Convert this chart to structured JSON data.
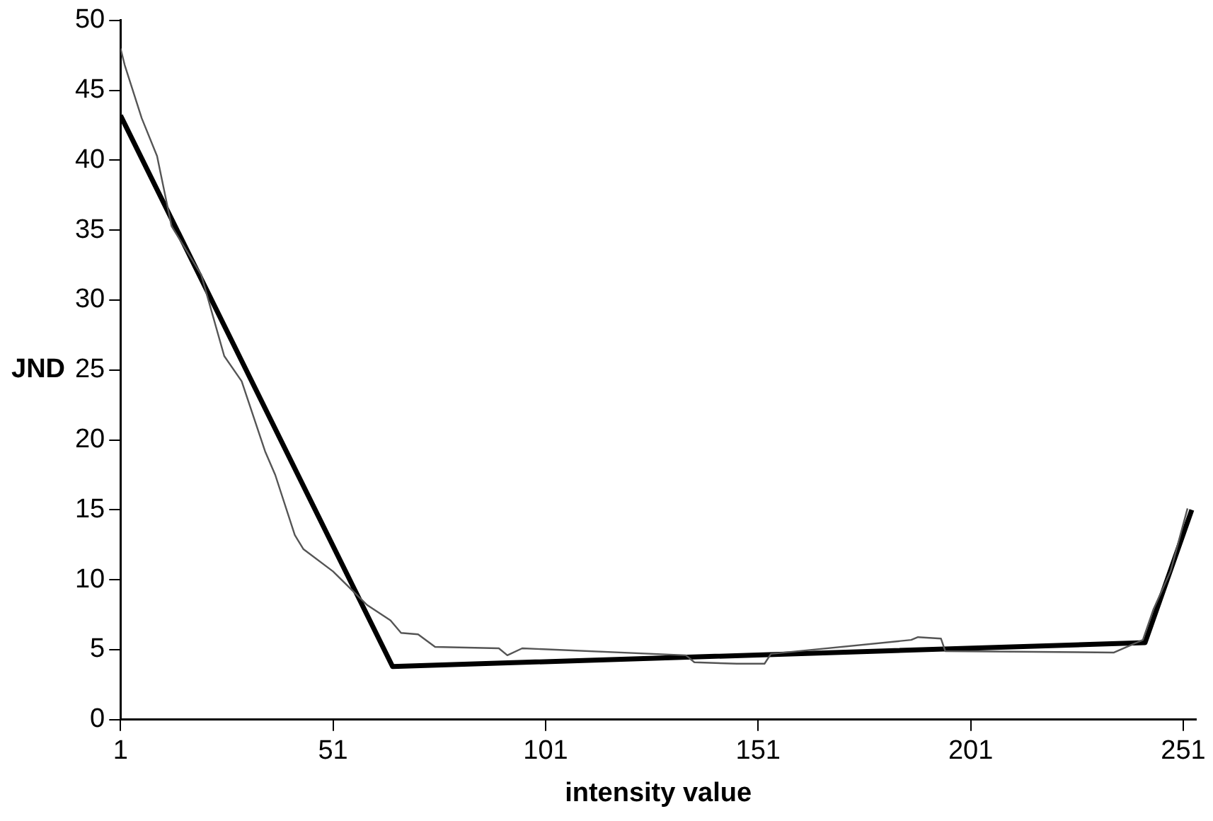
{
  "chart_data": {
    "type": "line",
    "xlabel": "intensity value",
    "ylabel": "JND",
    "xlim": [
      1,
      254
    ],
    "xticks": [
      1,
      51,
      101,
      151,
      201,
      251
    ],
    "ylim": [
      0,
      50
    ],
    "yticks": [
      0,
      5,
      10,
      15,
      20,
      25,
      30,
      35,
      40,
      45,
      50
    ],
    "grid": false,
    "legend": false,
    "marker": "none",
    "series": [
      {
        "color": "#555555",
        "x": [
          1,
          2,
          6,
          9.6,
          13,
          20,
          25.4,
          29.5,
          35,
          37.4,
          42,
          44,
          51,
          59,
          64.5,
          67,
          71,
          75,
          90,
          92,
          95.5,
          134,
          136,
          146,
          152.5,
          154,
          187,
          188.6,
          194,
          195,
          234.7,
          241.5,
          244,
          248,
          252
        ],
        "values": [
          48,
          46.8,
          43,
          40.3,
          35.3,
          31.8,
          26,
          24.2,
          19.2,
          17.5,
          13.2,
          12.2,
          10.6,
          8.2,
          7.1,
          6.2,
          6.1,
          5.2,
          5.1,
          4.6,
          5.1,
          4.6,
          4.1,
          4,
          4,
          4.7,
          5.7,
          5.9,
          5.8,
          4.9,
          4.8,
          5.7,
          7.9,
          10.6,
          15.1
        ]
      },
      {
        "color": "#000000",
        "x": [
          1,
          65,
          242,
          253
        ],
        "values": [
          43.2,
          3.8,
          5.5,
          15
        ]
      }
    ]
  }
}
